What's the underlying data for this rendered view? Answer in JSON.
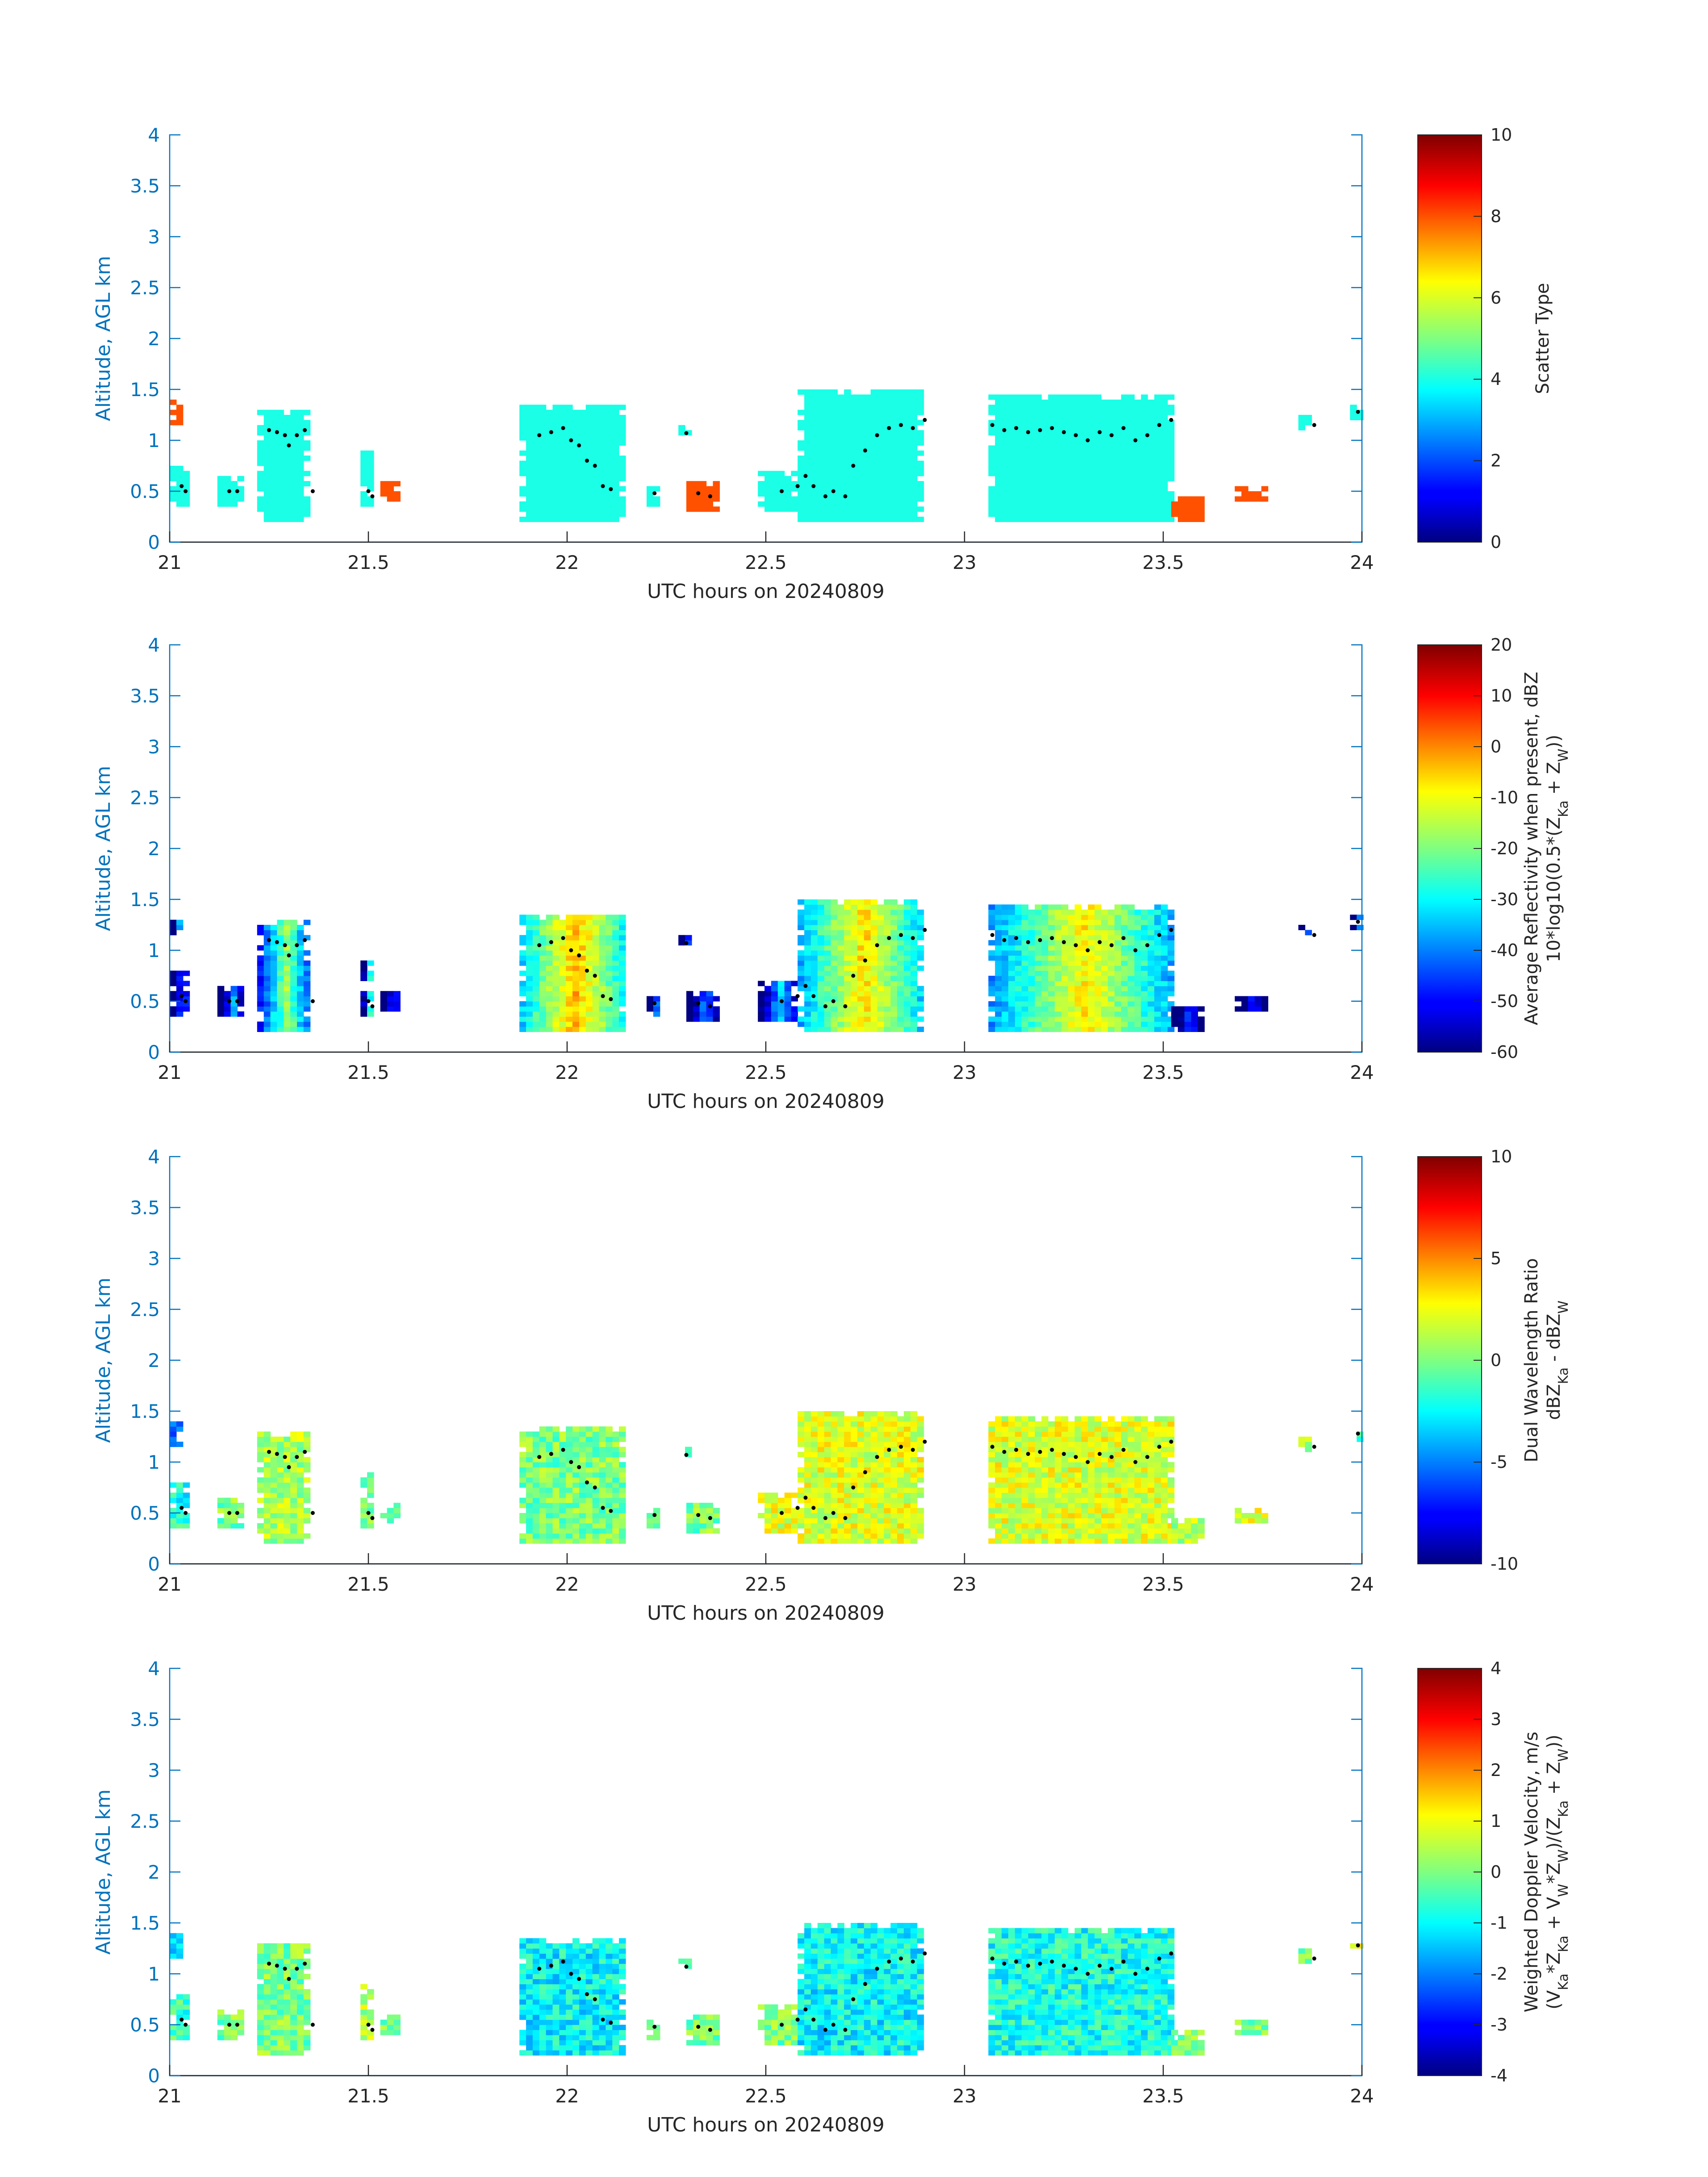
{
  "figure": {
    "panels": [
      {
        "id": "scatter",
        "colorbar": {
          "label_lines": [
            "Scatter Type"
          ],
          "min": 0,
          "max": 10,
          "ticks": [
            0,
            2,
            4,
            6,
            8,
            10
          ]
        }
      },
      {
        "id": "reflectivity",
        "colorbar": {
          "label_lines": [
            "Average Reflectivity when present, dBZ",
            "10*log10(0.5*(Z_Ka + Z_W))"
          ],
          "min": -60,
          "max": 20,
          "ticks": [
            -60,
            -50,
            -40,
            -30,
            -20,
            -10,
            0,
            10,
            20
          ]
        }
      },
      {
        "id": "dwr",
        "colorbar": {
          "label_lines": [
            "Dual Wavelength Ratio",
            "dBZ_Ka - dBZ_W"
          ],
          "min": -10,
          "max": 10,
          "ticks": [
            -10,
            -5,
            0,
            5,
            10
          ]
        }
      },
      {
        "id": "velocity",
        "colorbar": {
          "label_lines": [
            "Weighted Doppler Velocity, m/s",
            "(V_Ka*Z_Ka + V_W*Z_W)/(Z_Ka + Z_W))"
          ],
          "min": -4,
          "max": 4,
          "ticks": [
            -4,
            -3,
            -2,
            -1,
            0,
            1,
            2,
            3,
            4
          ]
        }
      }
    ]
  },
  "chart_data": {
    "type": "heatmap",
    "xlabel": "UTC hours on 20240809",
    "ylabel": "Altitude, AGL km",
    "xlim": [
      21,
      24
    ],
    "ylim": [
      0,
      4
    ],
    "xticks": [
      21,
      21.5,
      22,
      22.5,
      23,
      23.5,
      24
    ],
    "yticks": [
      0,
      0.5,
      1,
      1.5,
      2,
      2.5,
      3,
      3.5,
      4
    ],
    "cell_size": {
      "dx_hours": 0.0167,
      "dy_km": 0.05
    },
    "echo_regions": [
      {
        "x0": 21.0,
        "x1": 21.05,
        "y0": 0.35,
        "y1": 0.8,
        "z": {
          "scatter": 4,
          "reflectivity": -52,
          "dwr": -2,
          "velocity": -0.5
        }
      },
      {
        "x0": 21.0,
        "x1": 21.03,
        "y0": 1.15,
        "y1": 1.4,
        "z": {
          "scatter": 8,
          "reflectivity": -50,
          "dwr": -6,
          "velocity": -1.5
        }
      },
      {
        "x0": 21.12,
        "x1": 21.18,
        "y0": 0.35,
        "y1": 0.65,
        "z": {
          "scatter": 4,
          "reflectivity": -50,
          "dwr": 0,
          "velocity": 0
        }
      },
      {
        "x0": 21.22,
        "x1": 21.36,
        "y0": 0.2,
        "y1": 1.3,
        "z": {
          "scatter": 4,
          "reflectivity": -30,
          "dwr": 1,
          "velocity": 0
        }
      },
      {
        "x0": 21.48,
        "x1": 21.51,
        "y0": 0.35,
        "y1": 0.9,
        "z": {
          "scatter": 4,
          "reflectivity": -40,
          "dwr": 0,
          "velocity": 0.5
        }
      },
      {
        "x0": 21.53,
        "x1": 21.58,
        "y0": 0.4,
        "y1": 0.6,
        "z": {
          "scatter": 8,
          "reflectivity": -55,
          "dwr": 0,
          "velocity": 0
        }
      },
      {
        "x0": 21.88,
        "x1": 22.14,
        "y0": 0.2,
        "y1": 1.35,
        "z": {
          "scatter": 4,
          "reflectivity": -15,
          "dwr": 0,
          "velocity": -1
        }
      },
      {
        "x0": 22.2,
        "x1": 22.24,
        "y0": 0.35,
        "y1": 0.55,
        "z": {
          "scatter": 4,
          "reflectivity": -55,
          "dwr": 0,
          "velocity": 0
        }
      },
      {
        "x0": 22.28,
        "x1": 22.31,
        "y0": 1.05,
        "y1": 1.15,
        "z": {
          "scatter": 4,
          "reflectivity": -60,
          "dwr": 0,
          "velocity": 0
        }
      },
      {
        "x0": 22.3,
        "x1": 22.38,
        "y0": 0.3,
        "y1": 0.6,
        "z": {
          "scatter": 8,
          "reflectivity": -50,
          "dwr": 0,
          "velocity": 0
        }
      },
      {
        "x0": 22.48,
        "x1": 22.58,
        "y0": 0.3,
        "y1": 0.7,
        "z": {
          "scatter": 4,
          "reflectivity": -45,
          "dwr": 2,
          "velocity": 0
        }
      },
      {
        "x0": 22.58,
        "x1": 22.9,
        "y0": 0.2,
        "y1": 1.5,
        "z": {
          "scatter": 4,
          "reflectivity": -18,
          "dwr": 2,
          "velocity": -1
        }
      },
      {
        "x0": 23.06,
        "x1": 23.52,
        "y0": 0.2,
        "y1": 1.45,
        "z": {
          "scatter": 4,
          "reflectivity": -20,
          "dwr": 2,
          "velocity": -0.8
        }
      },
      {
        "x0": 23.52,
        "x1": 23.6,
        "y0": 0.2,
        "y1": 0.45,
        "z": {
          "scatter": 8,
          "reflectivity": -55,
          "dwr": 1,
          "velocity": 0
        }
      },
      {
        "x0": 23.68,
        "x1": 23.76,
        "y0": 0.4,
        "y1": 0.55,
        "z": {
          "scatter": 8,
          "reflectivity": -58,
          "dwr": 2,
          "velocity": 0
        }
      },
      {
        "x0": 23.84,
        "x1": 23.88,
        "y0": 1.1,
        "y1": 1.25,
        "z": {
          "scatter": 4,
          "reflectivity": -55,
          "dwr": 1,
          "velocity": 0
        }
      },
      {
        "x0": 23.97,
        "x1": 24.0,
        "y0": 1.2,
        "y1": 1.35,
        "z": {
          "scatter": 4,
          "reflectivity": -55,
          "dwr": -2,
          "velocity": 1
        }
      }
    ],
    "overlay_points": {
      "x": [
        21.03,
        21.04,
        21.15,
        21.17,
        21.25,
        21.27,
        21.29,
        21.3,
        21.32,
        21.34,
        21.36,
        21.5,
        21.51,
        21.93,
        21.96,
        21.99,
        22.01,
        22.03,
        22.05,
        22.07,
        22.09,
        22.11,
        22.22,
        22.3,
        22.33,
        22.36,
        22.54,
        22.58,
        22.6,
        22.62,
        22.65,
        22.67,
        22.7,
        22.72,
        22.75,
        22.78,
        22.81,
        22.84,
        22.87,
        22.9,
        23.07,
        23.1,
        23.13,
        23.16,
        23.19,
        23.22,
        23.25,
        23.28,
        23.31,
        23.34,
        23.37,
        23.4,
        23.43,
        23.46,
        23.49,
        23.52,
        23.88,
        23.99
      ],
      "y": [
        0.55,
        0.5,
        0.5,
        0.5,
        1.1,
        1.08,
        1.05,
        0.95,
        1.05,
        1.1,
        0.5,
        0.5,
        0.45,
        1.05,
        1.08,
        1.12,
        1.0,
        0.95,
        0.8,
        0.75,
        0.55,
        0.52,
        0.48,
        1.07,
        0.48,
        0.45,
        0.5,
        0.55,
        0.65,
        0.55,
        0.45,
        0.5,
        0.45,
        0.75,
        0.9,
        1.05,
        1.12,
        1.15,
        1.12,
        1.2,
        1.15,
        1.1,
        1.12,
        1.08,
        1.1,
        1.12,
        1.08,
        1.05,
        1.0,
        1.08,
        1.05,
        1.12,
        1.0,
        1.05,
        1.15,
        1.2,
        1.15,
        1.28
      ]
    }
  }
}
